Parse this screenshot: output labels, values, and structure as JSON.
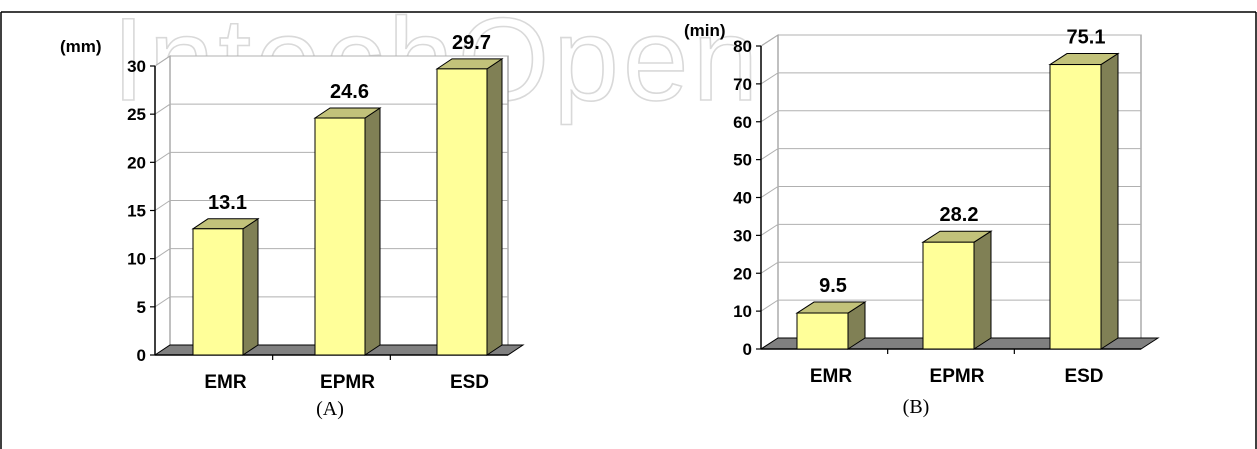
{
  "watermark": "IntechOpen",
  "chart_data": [
    {
      "type": "bar",
      "unit_label": "(mm)",
      "categories": [
        "EMR",
        "EPMR",
        "ESD"
      ],
      "values": [
        13.1,
        24.6,
        29.7
      ],
      "data_labels": [
        "13.1",
        "24.6",
        "29.7"
      ],
      "ylim": [
        0,
        30
      ],
      "yticks": [
        0,
        5,
        10,
        15,
        20,
        25,
        30
      ],
      "grid": true,
      "caption": "(A)",
      "colors": {
        "bar_front": "#ffff99",
        "bar_side": "#808055",
        "bar_top": "#c2c27a",
        "floor": "#808080"
      }
    },
    {
      "type": "bar",
      "unit_label": "(min)",
      "categories": [
        "EMR",
        "EPMR",
        "ESD"
      ],
      "values": [
        9.5,
        28.2,
        75.1
      ],
      "data_labels": [
        "9.5",
        "28.2",
        "75.1"
      ],
      "ylim": [
        0,
        80
      ],
      "yticks": [
        0,
        10,
        20,
        30,
        40,
        50,
        60,
        70,
        80
      ],
      "grid": true,
      "caption": "(B)",
      "colors": {
        "bar_front": "#ffff99",
        "bar_side": "#808055",
        "bar_top": "#c2c27a",
        "floor": "#808080"
      }
    }
  ]
}
